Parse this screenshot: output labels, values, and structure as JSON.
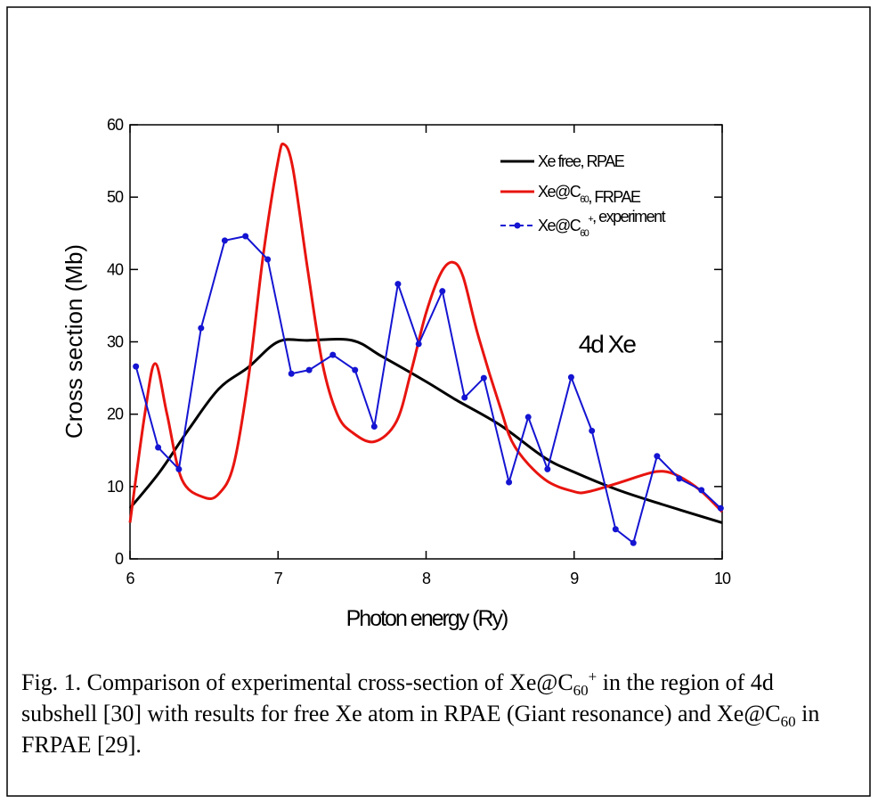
{
  "chart_data": {
    "type": "line",
    "xlabel": "Photon energy (Ry)",
    "ylabel": "Cross section (Mb)",
    "annotation": "4d Xe",
    "caption": "Fig. 1. Comparison of experimental cross-section of Xe@C60+ in the region of 4d subshell [30] with results for free Xe atom in RPAE (Giant resonance) and Xe@C60 in FRPAE [29].",
    "xlim": [
      6,
      10
    ],
    "xticks": [
      6,
      7,
      8,
      9,
      10
    ],
    "ylim": [
      0,
      60
    ],
    "yticks": [
      0,
      10,
      20,
      30,
      40,
      50,
      60
    ],
    "legend": "upper right",
    "series": [
      {
        "name": "Xe free, RPAE",
        "color": "#000000",
        "smooth": true,
        "markers": false,
        "x": [
          6,
          6.2,
          6.4,
          6.6,
          6.8,
          7.0,
          7.2,
          7.5,
          7.7,
          8.0,
          8.2,
          8.5,
          8.8,
          9.0,
          9.3,
          9.6,
          10
        ],
        "values": [
          7,
          12,
          18,
          23.5,
          26.5,
          30,
          30.2,
          30.2,
          28,
          24.5,
          22,
          18.5,
          14,
          12,
          9.5,
          7.5,
          5
        ]
      },
      {
        "name": "Xe@C60, FRPAE",
        "color": "#e8140f",
        "smooth": true,
        "markers": false,
        "x": [
          6,
          6.1,
          6.17,
          6.25,
          6.35,
          6.5,
          6.6,
          6.7,
          6.8,
          6.9,
          7.0,
          7.04,
          7.1,
          7.2,
          7.3,
          7.4,
          7.5,
          7.65,
          7.8,
          7.9,
          8.0,
          8.1,
          8.18,
          8.25,
          8.35,
          8.5,
          8.6,
          8.8,
          9.0,
          9.1,
          9.3,
          9.5,
          9.6,
          9.7,
          9.85,
          10
        ],
        "values": [
          5,
          20,
          27,
          20,
          11,
          8.5,
          9,
          13,
          25,
          42,
          55,
          57.3,
          54,
          40,
          27,
          20,
          17.5,
          16.2,
          19,
          26,
          34,
          39.5,
          41,
          39,
          31,
          21,
          15.5,
          11,
          9.3,
          9.3,
          10.5,
          11.8,
          12.1,
          11.5,
          9.5,
          6.5
        ]
      },
      {
        "name": "Xe@C60+, experiment",
        "color": "#1414d2",
        "smooth": false,
        "markers": true,
        "x": [
          6.04,
          6.19,
          6.33,
          6.48,
          6.64,
          6.78,
          6.93,
          7.09,
          7.21,
          7.37,
          7.52,
          7.65,
          7.81,
          7.95,
          8.11,
          8.26,
          8.39,
          8.56,
          8.69,
          8.82,
          8.98,
          9.12,
          9.28,
          9.4,
          9.56,
          9.71,
          9.86,
          9.99
        ],
        "values": [
          26.6,
          15.4,
          12.4,
          31.9,
          44,
          44.6,
          41.4,
          25.6,
          26.1,
          28.2,
          26.1,
          18.3,
          38,
          29.7,
          37,
          22.3,
          25,
          10.6,
          19.6,
          12.4,
          25.1,
          17.7,
          4.1,
          2.2,
          14.2,
          11.1,
          9.5,
          7
        ]
      }
    ]
  }
}
